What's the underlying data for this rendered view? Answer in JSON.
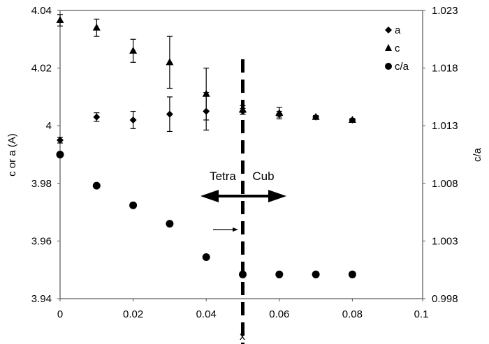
{
  "chart_data": {
    "type": "scatter",
    "xlabel": "x",
    "ylabel_left": "c or a (A)",
    "ylabel_right": "c/a",
    "xlim": [
      0,
      0.1
    ],
    "ylim_left": [
      3.94,
      4.04
    ],
    "ylim_right": [
      0.998,
      1.023
    ],
    "x_ticks": [
      "0",
      "0.02",
      "0.04",
      "0.06",
      "0.08",
      "0.1"
    ],
    "y_left_ticks": [
      "3.94",
      "3.96",
      "3.98",
      "4",
      "4.02",
      "4.04"
    ],
    "y_right_ticks": [
      "0.998",
      "1.003",
      "1.008",
      "1.013",
      "1.018",
      "1.023"
    ],
    "grid": false,
    "legend_position": "top-right",
    "series": [
      {
        "name": "a",
        "marker": "diamond",
        "axis": "left",
        "x": [
          0,
          0.01,
          0.02,
          0.03,
          0.04,
          0.05,
          0.06,
          0.07,
          0.08
        ],
        "y": [
          3.995,
          4.003,
          4.002,
          4.004,
          4.005,
          4.005,
          4.004,
          4.003,
          4.002
        ],
        "err": [
          0.001,
          0.0015,
          0.003,
          0.006,
          0.0065,
          0.001,
          0.001,
          0.0005,
          0.0005
        ]
      },
      {
        "name": "c",
        "marker": "triangle",
        "axis": "left",
        "x": [
          0,
          0.01,
          0.02,
          0.03,
          0.04,
          0.05,
          0.06,
          0.07,
          0.08
        ],
        "y": [
          4.0366,
          4.034,
          4.026,
          4.022,
          4.011,
          4.0055,
          4.0044,
          4.003,
          4.002
        ],
        "err": [
          0.002,
          0.003,
          0.004,
          0.009,
          0.009,
          0.0015,
          0.002,
          0.0005,
          0.0005
        ]
      },
      {
        "name": "c/a",
        "marker": "circle",
        "axis": "right",
        "x": [
          0,
          0.01,
          0.02,
          0.03,
          0.04,
          0.05,
          0.06,
          0.07,
          0.08
        ],
        "y": [
          1.0105,
          1.0078,
          1.0061,
          1.0045,
          1.0016,
          1.0001,
          1.0001,
          1.0001,
          1.0001
        ]
      }
    ],
    "annotations": {
      "boundary_x": 0.05,
      "left_region": "Tetra",
      "right_region": "Cub"
    }
  }
}
